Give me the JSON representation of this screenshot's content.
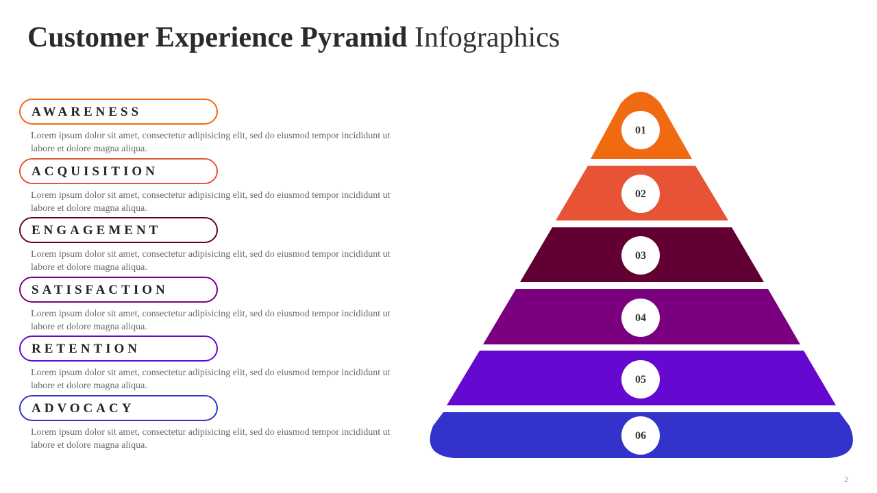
{
  "title": {
    "bold": "Customer Experience Pyramid",
    "light": "Infographics"
  },
  "stages": [
    {
      "label": "AWARENESS",
      "number": "01",
      "color": "#f06a11",
      "text": "Lorem ipsum dolor sit amet, consectetur adipisicing elit, sed do eiusmod tempor incididunt ut labore et dolore magna aliqua."
    },
    {
      "label": "ACQUISITION",
      "number": "02",
      "color": "#e65435",
      "text": "Lorem ipsum dolor sit amet, consectetur adipisicing elit, sed do eiusmod tempor incididunt ut labore et dolore magna aliqua."
    },
    {
      "label": "ENGAGEMENT",
      "number": "03",
      "color": "#620033",
      "text": "Lorem ipsum dolor sit amet, consectetur adipisicing elit, sed do eiusmod tempor incididunt ut labore et dolore magna aliqua."
    },
    {
      "label": "SATISFACTION",
      "number": "04",
      "color": "#7a0080",
      "text": "Lorem ipsum dolor sit amet, consectetur adipisicing elit, sed do eiusmod tempor incididunt ut labore et dolore magna aliqua."
    },
    {
      "label": "RETENTION",
      "number": "05",
      "color": "#6509d0",
      "text": "Lorem ipsum dolor sit amet, consectetur adipisicing elit, sed do eiusmod tempor incididunt ut labore et dolore magna aliqua."
    },
    {
      "label": "ADVOCACY",
      "number": "06",
      "color": "#3333cc",
      "text": "Lorem ipsum dolor sit amet, consectetur adipisicing elit, sed do eiusmod tempor incididunt ut labore et dolore magna aliqua."
    }
  ],
  "page_number": "2"
}
